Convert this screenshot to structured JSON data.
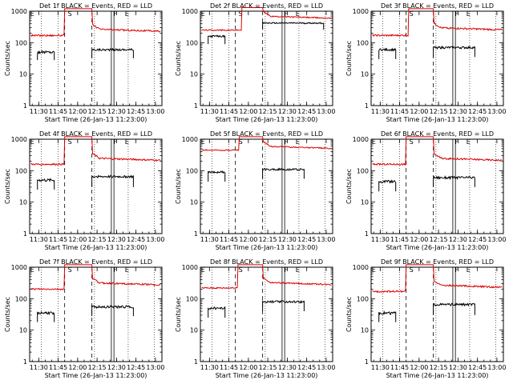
{
  "chart_data": [
    {
      "type": "line",
      "title": "Det 1f BLACK = Events, RED = LLD",
      "xlabel": "Start Time (26-Jan-13 11:23:00)",
      "ylabel": "Counts/sec",
      "x_tick_labels": [
        "11:30",
        "11:45",
        "12:00",
        "12:15",
        "12:30",
        "12:45",
        "13:00"
      ],
      "y_tick_labels": [
        "1",
        "10",
        "100",
        "1000"
      ],
      "scale_y": "log",
      "ylim": [
        1,
        1000
      ],
      "xlim": [
        "11:23",
        "13:05"
      ],
      "markers": [
        {
          "label": "E",
          "time": "11:25"
        },
        {
          "label": "S",
          "time": "11:54"
        },
        {
          "label": "F",
          "time": "12:29"
        },
        {
          "label": "E",
          "time": "12:38"
        }
      ],
      "series": [
        {
          "name": "Events",
          "color": "#000000",
          "segments": [
            {
              "t0": "11:29",
              "t1": "11:42",
              "base": 50,
              "noise": 0.1,
              "edge": 28
            },
            {
              "t0": "12:11",
              "t1": "12:43",
              "base": 60,
              "noise": 0.08,
              "edge": 32
            }
          ]
        },
        {
          "name": "LLD",
          "color": "#dd0000",
          "base": 170,
          "high": 1200,
          "high_t0": "11:50",
          "high_t1": "12:11",
          "high_decay_to": 270,
          "noise": 0.06
        }
      ]
    },
    {
      "type": "line",
      "title": "Det 2f BLACK = Events, RED = LLD",
      "xlabel": "Start Time (26-Jan-13 11:23:00)",
      "ylabel": "Counts/sec",
      "x_tick_labels": [
        "11:30",
        "11:45",
        "12:00",
        "12:15",
        "12:30",
        "12:45",
        "13:00"
      ],
      "y_tick_labels": [
        "1",
        "10",
        "100",
        "1000"
      ],
      "scale_y": "log",
      "ylim": [
        1,
        1000
      ],
      "xlim": [
        "11:23",
        "13:05"
      ],
      "markers": [
        {
          "label": "E",
          "time": "11:25"
        },
        {
          "label": "S",
          "time": "11:54"
        },
        {
          "label": "F",
          "time": "12:29"
        },
        {
          "label": "E",
          "time": "12:38"
        }
      ],
      "series": [
        {
          "name": "Events",
          "color": "#000000",
          "segments": [
            {
              "t0": "11:29",
              "t1": "11:42",
              "base": 160,
              "noise": 0.06,
              "edge": 90
            },
            {
              "t0": "12:11",
              "t1": "12:58",
              "base": 420,
              "noise": 0.05,
              "edge": 260
            }
          ]
        },
        {
          "name": "LLD",
          "color": "#dd0000",
          "base": 250,
          "high": 1300,
          "high_t0": "11:55",
          "high_t1": "12:11",
          "high_decay_to": 700,
          "noise": 0.04
        }
      ]
    },
    {
      "type": "line",
      "title": "Det 3f BLACK = Events, RED = LLD",
      "xlabel": "Start Time (26-Jan-13 11:23:00)",
      "ylabel": "Counts/sec",
      "x_tick_labels": [
        "11:30",
        "11:45",
        "12:00",
        "12:15",
        "12:30",
        "12:45",
        "13:00"
      ],
      "y_tick_labels": [
        "1",
        "10",
        "100",
        "1000"
      ],
      "scale_y": "log",
      "ylim": [
        1,
        1000
      ],
      "xlim": [
        "11:23",
        "13:05"
      ],
      "markers": [
        {
          "label": "E",
          "time": "11:25"
        },
        {
          "label": "S",
          "time": "11:54"
        },
        {
          "label": "F",
          "time": "12:29"
        },
        {
          "label": "E",
          "time": "12:38"
        }
      ],
      "series": [
        {
          "name": "Events",
          "color": "#000000",
          "segments": [
            {
              "t0": "11:29",
              "t1": "11:42",
              "base": 60,
              "noise": 0.08,
              "edge": 30
            },
            {
              "t0": "12:11",
              "t1": "12:43",
              "base": 70,
              "noise": 0.08,
              "edge": 35
            }
          ]
        },
        {
          "name": "LLD",
          "color": "#dd0000",
          "base": 170,
          "high": 1200,
          "high_t0": "11:52",
          "high_t1": "12:11",
          "high_decay_to": 300,
          "noise": 0.06
        }
      ]
    },
    {
      "type": "line",
      "title": "Det 4f BLACK = Events, RED = LLD",
      "xlabel": "Start Time (26-Jan-13 11:23:00)",
      "ylabel": "Counts/sec",
      "x_tick_labels": [
        "11:30",
        "11:45",
        "12:00",
        "12:15",
        "12:30",
        "12:45",
        "13:00"
      ],
      "y_tick_labels": [
        "1",
        "10",
        "100",
        "1000"
      ],
      "scale_y": "log",
      "ylim": [
        1,
        1000
      ],
      "xlim": [
        "11:23",
        "13:05"
      ],
      "markers": [
        {
          "label": "E",
          "time": "11:25"
        },
        {
          "label": "S",
          "time": "11:54"
        },
        {
          "label": "F",
          "time": "12:29"
        },
        {
          "label": "E",
          "time": "12:38"
        }
      ],
      "series": [
        {
          "name": "Events",
          "color": "#000000",
          "segments": [
            {
              "t0": "11:29",
              "t1": "11:42",
              "base": 50,
              "noise": 0.1,
              "edge": 25
            },
            {
              "t0": "12:11",
              "t1": "12:43",
              "base": 65,
              "noise": 0.08,
              "edge": 30
            }
          ]
        },
        {
          "name": "LLD",
          "color": "#dd0000",
          "base": 160,
          "high": 1200,
          "high_t0": "11:50",
          "high_t1": "12:11",
          "high_decay_to": 250,
          "noise": 0.06
        }
      ]
    },
    {
      "type": "line",
      "title": "Det 5f BLACK = Events, RED = LLD",
      "xlabel": "Start Time (26-Jan-13 11:23:00)",
      "ylabel": "Counts/sec",
      "x_tick_labels": [
        "11:30",
        "11:45",
        "12:00",
        "12:15",
        "12:30",
        "12:45",
        "13:00"
      ],
      "y_tick_labels": [
        "1",
        "10",
        "100",
        "1000"
      ],
      "scale_y": "log",
      "ylim": [
        1,
        1000
      ],
      "xlim": [
        "11:23",
        "13:05"
      ],
      "markers": [
        {
          "label": "E",
          "time": "11:25"
        },
        {
          "label": "S",
          "time": "11:54"
        },
        {
          "label": "F",
          "time": "12:29"
        },
        {
          "label": "E",
          "time": "12:38"
        }
      ],
      "series": [
        {
          "name": "Events",
          "color": "#000000",
          "segments": [
            {
              "t0": "11:29",
              "t1": "11:42",
              "base": 90,
              "noise": 0.07,
              "edge": 45
            },
            {
              "t0": "12:11",
              "t1": "12:43",
              "base": 110,
              "noise": 0.07,
              "edge": 55
            }
          ]
        },
        {
          "name": "LLD",
          "color": "#dd0000",
          "base": 450,
          "high": 1200,
          "high_t0": "11:53",
          "high_t1": "12:11",
          "high_decay_to": 600,
          "noise": 0.04
        }
      ]
    },
    {
      "type": "line",
      "title": "Det 6f BLACK = Events, RED = LLD",
      "xlabel": "Start Time (26-Jan-13 11:23:00)",
      "ylabel": "Counts/sec",
      "x_tick_labels": [
        "11:30",
        "11:45",
        "12:00",
        "12:15",
        "12:30",
        "12:45",
        "13:00"
      ],
      "y_tick_labels": [
        "1",
        "10",
        "100",
        "1000"
      ],
      "scale_y": "log",
      "ylim": [
        1,
        1000
      ],
      "xlim": [
        "11:23",
        "13:05"
      ],
      "markers": [
        {
          "label": "E",
          "time": "11:25"
        },
        {
          "label": "S",
          "time": "11:54"
        },
        {
          "label": "F",
          "time": "12:29"
        },
        {
          "label": "E",
          "time": "12:38"
        }
      ],
      "series": [
        {
          "name": "Events",
          "color": "#000000",
          "segments": [
            {
              "t0": "11:29",
              "t1": "11:42",
              "base": 45,
              "noise": 0.1,
              "edge": 22
            },
            {
              "t0": "12:11",
              "t1": "12:43",
              "base": 60,
              "noise": 0.09,
              "edge": 30
            }
          ]
        },
        {
          "name": "LLD",
          "color": "#dd0000",
          "base": 160,
          "high": 1200,
          "high_t0": "11:50",
          "high_t1": "12:11",
          "high_decay_to": 250,
          "noise": 0.06
        }
      ]
    },
    {
      "type": "line",
      "title": "Det 7f BLACK = Events, RED = LLD",
      "xlabel": "Start Time (26-Jan-13 11:23:00)",
      "ylabel": "Counts/sec",
      "x_tick_labels": [
        "11:30",
        "11:45",
        "12:00",
        "12:15",
        "12:30",
        "12:45",
        "13:00"
      ],
      "y_tick_labels": [
        "1",
        "10",
        "100",
        "1000"
      ],
      "scale_y": "log",
      "ylim": [
        1,
        1000
      ],
      "xlim": [
        "11:23",
        "13:05"
      ],
      "markers": [
        {
          "label": "E",
          "time": "11:25"
        },
        {
          "label": "S",
          "time": "11:54"
        },
        {
          "label": "F",
          "time": "12:29"
        },
        {
          "label": "E",
          "time": "12:38"
        }
      ],
      "series": [
        {
          "name": "Events",
          "color": "#000000",
          "segments": [
            {
              "t0": "11:29",
              "t1": "11:42",
              "base": 35,
              "noise": 0.1,
              "edge": 18
            },
            {
              "t0": "12:11",
              "t1": "12:43",
              "base": 55,
              "noise": 0.09,
              "edge": 28
            }
          ]
        },
        {
          "name": "LLD",
          "color": "#dd0000",
          "base": 200,
          "high": 1200,
          "high_t0": "11:50",
          "high_t1": "12:11",
          "high_decay_to": 320,
          "noise": 0.06
        }
      ]
    },
    {
      "type": "line",
      "title": "Det 8f BLACK = Events, RED = LLD",
      "xlabel": "Start Time (26-Jan-13 11:23:00)",
      "ylabel": "Counts/sec",
      "x_tick_labels": [
        "11:30",
        "11:45",
        "12:00",
        "12:15",
        "12:30",
        "12:45",
        "13:00"
      ],
      "y_tick_labels": [
        "1",
        "10",
        "100",
        "1000"
      ],
      "scale_y": "log",
      "ylim": [
        1,
        1000
      ],
      "xlim": [
        "11:23",
        "13:05"
      ],
      "markers": [
        {
          "label": "E",
          "time": "11:25"
        },
        {
          "label": "S",
          "time": "11:54"
        },
        {
          "label": "F",
          "time": "12:29"
        },
        {
          "label": "E",
          "time": "12:38"
        }
      ],
      "series": [
        {
          "name": "Events",
          "color": "#000000",
          "segments": [
            {
              "t0": "11:29",
              "t1": "11:42",
              "base": 50,
              "noise": 0.09,
              "edge": 25
            },
            {
              "t0": "12:11",
              "t1": "12:43",
              "base": 80,
              "noise": 0.08,
              "edge": 40
            }
          ]
        },
        {
          "name": "LLD",
          "color": "#dd0000",
          "base": 220,
          "high": 1200,
          "high_t0": "11:52",
          "high_t1": "12:11",
          "high_decay_to": 330,
          "noise": 0.05
        }
      ]
    },
    {
      "type": "line",
      "title": "Det 9f BLACK = Events, RED = LLD",
      "xlabel": "Start Time (26-Jan-13 11:23:00)",
      "ylabel": "Counts/sec",
      "x_tick_labels": [
        "11:30",
        "11:45",
        "12:00",
        "12:15",
        "12:30",
        "12:45",
        "13:00"
      ],
      "y_tick_labels": [
        "1",
        "10",
        "100",
        "1000"
      ],
      "scale_y": "log",
      "ylim": [
        1,
        1000
      ],
      "xlim": [
        "11:23",
        "13:05"
      ],
      "markers": [
        {
          "label": "E",
          "time": "11:25"
        },
        {
          "label": "S",
          "time": "11:54"
        },
        {
          "label": "F",
          "time": "12:29"
        },
        {
          "label": "E",
          "time": "12:38"
        }
      ],
      "series": [
        {
          "name": "Events",
          "color": "#000000",
          "segments": [
            {
              "t0": "11:29",
              "t1": "11:42",
              "base": 35,
              "noise": 0.1,
              "edge": 18
            },
            {
              "t0": "12:11",
              "t1": "12:43",
              "base": 65,
              "noise": 0.08,
              "edge": 30
            }
          ]
        },
        {
          "name": "LLD",
          "color": "#dd0000",
          "base": 170,
          "high": 1200,
          "high_t0": "11:50",
          "high_t1": "12:11",
          "high_decay_to": 270,
          "noise": 0.06
        }
      ]
    }
  ]
}
